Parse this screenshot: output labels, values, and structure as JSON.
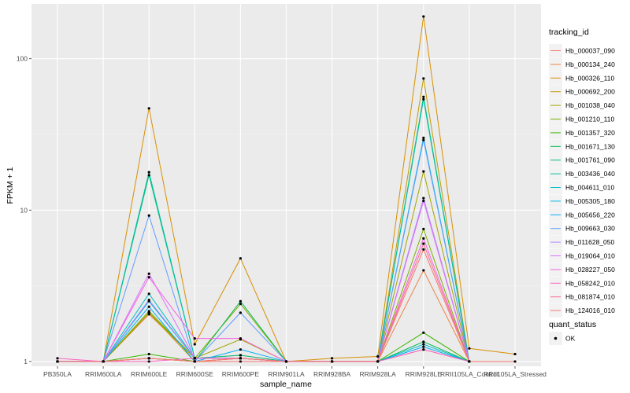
{
  "chart_data": {
    "type": "line",
    "xlabel": "sample_name",
    "ylabel": "FPKM + 1",
    "y_scale": "log10",
    "ylim": [
      0.93,
      230
    ],
    "y_ticks": [
      1,
      10,
      100
    ],
    "y_tick_labels": [
      "1",
      "10",
      "100"
    ],
    "grid": true,
    "legend_position": "right",
    "categories": [
      "PB350LA",
      "RRIM600LA",
      "RRIM600LE",
      "RRIM600SE",
      "RRIM600PE",
      "RRIM901LA",
      "RRIM928BA",
      "RRIM928LA",
      "RRIM928LE",
      "RRII105LA_Control",
      "RRII105LA_Stressed"
    ],
    "category_labels": [
      "PB350LA",
      "RRIM600LA",
      "RRIM600LE",
      "RRIM600SE",
      "RRIM600PE",
      "RRIM901LA",
      "RRIM928BA",
      "RRIM928LA",
      "RRIM928LE",
      "RRII105LA_Control",
      "RRII105LA_Stressed"
    ],
    "legend_title": "tracking_id",
    "series": [
      {
        "name": "Hb_000037_090",
        "color": "#F8766D",
        "values": [
          1.0,
          1.0,
          1.05,
          1.0,
          1.0,
          1.0,
          1.0,
          1.0,
          1.2,
          1.0,
          null
        ]
      },
      {
        "name": "Hb_000134_240",
        "color": "#EE8044",
        "values": [
          1.0,
          1.0,
          2.05,
          1.05,
          1.1,
          1.0,
          1.0,
          1.0,
          4.0,
          1.0,
          null
        ]
      },
      {
        "name": "Hb_000326_110",
        "color": "#D89000",
        "values": [
          1.0,
          1.0,
          47.0,
          1.3,
          4.8,
          1.0,
          1.05,
          1.08,
          190.0,
          1.22,
          1.12
        ]
      },
      {
        "name": "Hb_000692_200",
        "color": "#C09B00",
        "values": [
          1.0,
          1.0,
          2.1,
          1.0,
          1.05,
          1.0,
          1.0,
          1.0,
          74.0,
          1.0,
          null
        ]
      },
      {
        "name": "Hb_001038_040",
        "color": "#A3A500",
        "values": [
          1.0,
          1.0,
          2.1,
          1.05,
          1.4,
          1.0,
          1.0,
          1.0,
          18.0,
          1.0,
          null
        ]
      },
      {
        "name": "Hb_001210_110",
        "color": "#7CAE00",
        "values": [
          1.0,
          1.0,
          2.15,
          1.05,
          2.4,
          1.0,
          1.0,
          1.0,
          7.5,
          1.0,
          null
        ]
      },
      {
        "name": "Hb_001357_320",
        "color": "#39B600",
        "values": [
          1.0,
          1.0,
          1.12,
          1.0,
          1.05,
          1.0,
          1.0,
          1.0,
          1.55,
          1.0,
          null
        ]
      },
      {
        "name": "Hb_001671_130",
        "color": "#00BB4E",
        "values": [
          1.0,
          1.0,
          1.05,
          1.0,
          2.5,
          1.0,
          1.0,
          1.0,
          1.35,
          1.0,
          null
        ]
      },
      {
        "name": "Hb_001761_090",
        "color": "#00BF7D",
        "values": [
          1.0,
          1.0,
          17.0,
          1.05,
          1.1,
          1.0,
          1.0,
          1.0,
          56.0,
          1.0,
          null
        ]
      },
      {
        "name": "Hb_003436_040",
        "color": "#00C1A3",
        "values": [
          1.0,
          1.0,
          17.8,
          1.05,
          1.05,
          1.0,
          1.0,
          1.0,
          54.0,
          1.0,
          null
        ]
      },
      {
        "name": "Hb_004611_010",
        "color": "#00BFC4",
        "values": [
          1.0,
          1.0,
          2.8,
          1.05,
          1.05,
          1.0,
          1.0,
          1.0,
          1.3,
          1.0,
          null
        ]
      },
      {
        "name": "Hb_005305_180",
        "color": "#00B9E3",
        "values": [
          1.0,
          1.0,
          2.5,
          1.05,
          1.05,
          1.0,
          1.0,
          1.0,
          30.0,
          1.0,
          null
        ]
      },
      {
        "name": "Hb_005656_220",
        "color": "#00ADFA",
        "values": [
          1.0,
          1.0,
          2.3,
          1.0,
          1.2,
          1.0,
          1.0,
          1.0,
          1.25,
          1.0,
          null
        ]
      },
      {
        "name": "Hb_009663_030",
        "color": "#619CFF",
        "values": [
          1.0,
          1.0,
          9.2,
          1.0,
          2.1,
          1.0,
          1.0,
          1.0,
          29.0,
          1.0,
          null
        ]
      },
      {
        "name": "Hb_011628_050",
        "color": "#AE87FF",
        "values": [
          1.0,
          1.0,
          2.55,
          1.05,
          1.05,
          1.0,
          1.0,
          1.0,
          12.0,
          1.0,
          null
        ]
      },
      {
        "name": "Hb_019064_010",
        "color": "#DB72FB",
        "values": [
          1.0,
          1.0,
          3.8,
          1.05,
          1.05,
          1.0,
          1.0,
          1.0,
          11.5,
          1.0,
          null
        ]
      },
      {
        "name": "Hb_028227_050",
        "color": "#F564E3",
        "values": [
          1.0,
          1.0,
          3.6,
          1.42,
          1.42,
          1.0,
          1.0,
          1.0,
          6.5,
          1.0,
          null
        ]
      },
      {
        "name": "Hb_058242_010",
        "color": "#FF61C3",
        "values": [
          1.05,
          1.0,
          1.0,
          1.05,
          1.05,
          1.0,
          1.0,
          1.0,
          1.2,
          1.0,
          null
        ]
      },
      {
        "name": "Hb_081874_010",
        "color": "#FF6C91",
        "values": [
          1.0,
          1.0,
          1.05,
          1.0,
          1.05,
          1.0,
          1.0,
          1.0,
          6.0,
          1.0,
          null
        ]
      },
      {
        "name": "Hb_124016_010",
        "color": "#F8766D",
        "values": [
          1.0,
          1.0,
          1.05,
          1.0,
          1.05,
          1.0,
          1.0,
          1.0,
          5.5,
          1.0,
          1.0
        ]
      }
    ],
    "shape_legend": {
      "title": "quant_status",
      "items": [
        {
          "label": "OK"
        }
      ]
    }
  }
}
